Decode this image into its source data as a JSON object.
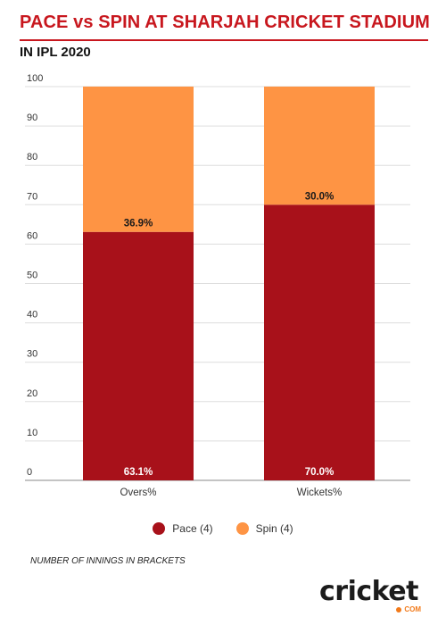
{
  "header": {
    "title": "PACE vs SPIN AT SHARJAH CRICKET STADIUM",
    "subtitle": "IN IPL 2020"
  },
  "chart_data": {
    "type": "bar",
    "stacked": true,
    "categories": [
      "Overs%",
      "Wickets%"
    ],
    "series": [
      {
        "name": "Pace (4)",
        "values": [
          63.1,
          70.0
        ],
        "labels": [
          "63.1%",
          "70.0%"
        ],
        "color": "#a8111a"
      },
      {
        "name": "Spin (4)",
        "values": [
          36.9,
          30.0
        ],
        "labels": [
          "36.9%",
          "30.0%"
        ],
        "color": "#fe9444"
      }
    ],
    "ylim": [
      0,
      100
    ],
    "yticks": [
      0,
      10,
      20,
      30,
      40,
      50,
      60,
      70,
      80,
      90,
      100
    ],
    "grid": true,
    "legend_position": "bottom"
  },
  "footnote": "NUMBER OF INNINGS IN BRACKETS",
  "logo": {
    "word": "cricket",
    "suffix": "COM"
  }
}
